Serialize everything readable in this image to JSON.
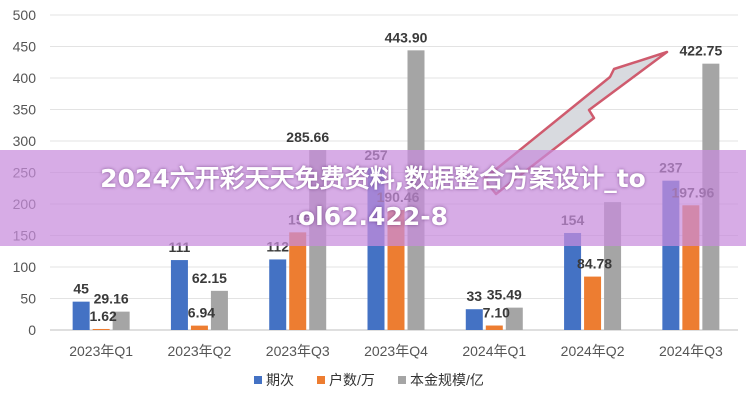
{
  "overlay": {
    "title_line1": "2024六开彩天天免费资料,数据整合方案设计_to",
    "title_line2": "ol62.422-8"
  },
  "chart_data": {
    "type": "bar",
    "categories": [
      "2023年Q1",
      "2023年Q2",
      "2023年Q3",
      "2023年Q4",
      "2024年Q1",
      "2024年Q2",
      "2024年Q3"
    ],
    "series": [
      {
        "name": "期次",
        "color": "#4472C4",
        "values": [
          45,
          111,
          112,
          257,
          33,
          154,
          237
        ],
        "labels": [
          "45",
          "111",
          "112",
          "257",
          "33",
          "154",
          "237"
        ]
      },
      {
        "name": "户数/万",
        "color": "#ED7D31",
        "values": [
          1.62,
          6.94,
          155,
          190.46,
          7.1,
          84.78,
          197.96
        ],
        "labels": [
          "1.62",
          "6.94",
          "155",
          "190.46",
          "7.10",
          "84.78",
          "197.96"
        ]
      },
      {
        "name": "本金规模/亿",
        "color": "#A5A5A5",
        "values": [
          29.16,
          62.15,
          285.66,
          443.9,
          35.49,
          203,
          422.75
        ],
        "labels": [
          "29.16",
          "62.15",
          "285.66",
          "443.90",
          "35.49",
          "",
          "422.75"
        ]
      }
    ],
    "yticks": [
      0,
      50,
      100,
      150,
      200,
      250,
      300,
      350,
      400,
      450,
      500
    ],
    "ylim": [
      0,
      500
    ],
    "grid": true,
    "legend": "bottom",
    "annotation": "upward-trend-arrow"
  }
}
